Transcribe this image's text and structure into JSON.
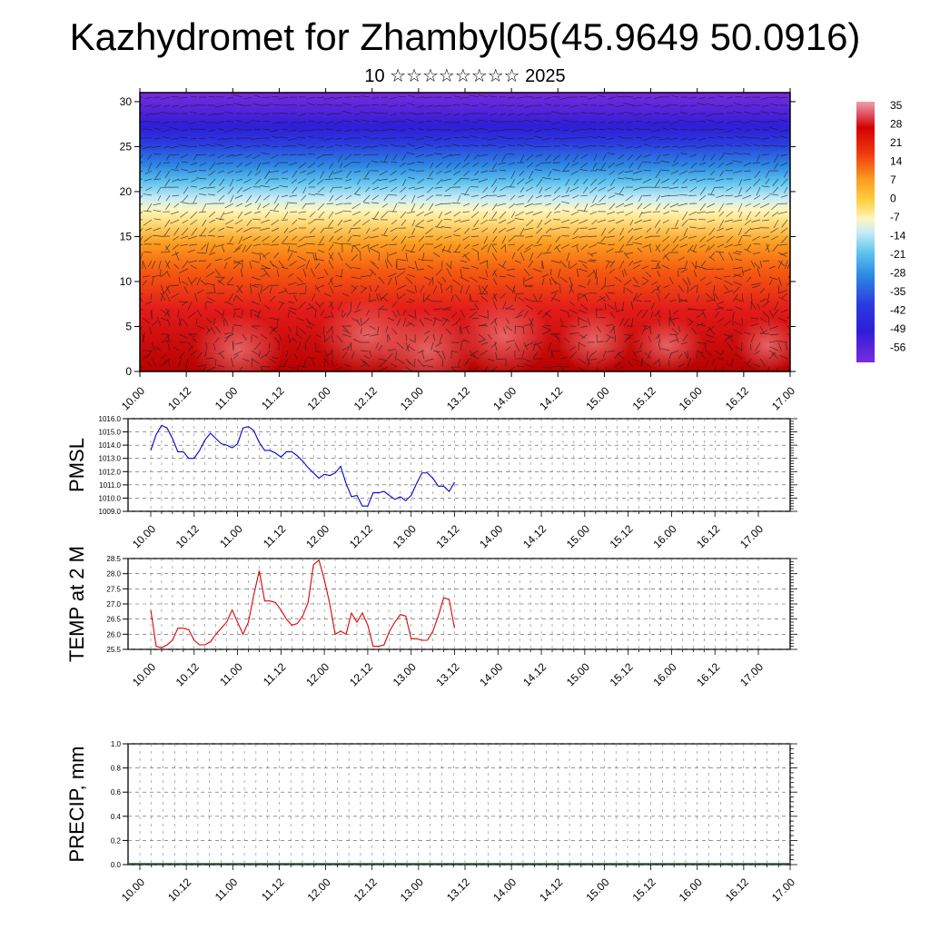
{
  "header": {
    "title": "Kazhydromet for Zhambyl05(45.9649 50.0916)",
    "subtitle": "10 ☆☆☆☆☆☆☆☆ 2025"
  },
  "colors": {
    "pmsl_line": "#0000cc",
    "temp_line": "#e00000",
    "frame": "#000000"
  },
  "chart_data": [
    {
      "type": "heatmap",
      "title": "",
      "x_tick_labels": [
        "10.00",
        "10.12",
        "11.00",
        "11.12",
        "12.00",
        "12.12",
        "13.00",
        "13.12",
        "14.00",
        "14.12",
        "15.00",
        "15.12",
        "16.00",
        "16.12",
        "17.00"
      ],
      "y_tick_labels": [
        "0",
        "5",
        "10",
        "15",
        "20",
        "25",
        "30"
      ],
      "ylim": [
        0,
        31
      ],
      "colorbar": {
        "labels": [
          "35",
          "28",
          "21",
          "14",
          "7",
          "0",
          "-7",
          "-14",
          "-21",
          "-28",
          "-35",
          "-42",
          "-49",
          "-56"
        ],
        "range": [
          -60,
          38
        ]
      },
      "overlay": "wind vectors",
      "notes_grid": true
    },
    {
      "type": "line",
      "ylabel": "PMSL",
      "ylim": [
        1009.0,
        1016.0
      ],
      "y_tick_labels": [
        "1016.0",
        "1015.0",
        "1014.0",
        "1013.0",
        "1012.0",
        "1011.0",
        "1010.0",
        "1009.0"
      ],
      "x_tick_labels": [
        "10.00",
        "10.12",
        "11.00",
        "11.12",
        "12.00",
        "12.12",
        "13.00",
        "13.12",
        "14.00",
        "14.12",
        "15.00",
        "15.12",
        "16.00",
        "16.12",
        "17.00"
      ],
      "grid": true,
      "series": [
        {
          "values": [
            1013.6,
            1014.8,
            1015.5,
            1015.3,
            1014.5,
            1013.5,
            1013.5,
            1013.0,
            1013.0,
            1013.6,
            1014.4,
            1014.9,
            1014.5,
            1014.1,
            1014.0,
            1013.8,
            1014.1,
            1015.3,
            1015.4,
            1015.1,
            1014.2,
            1013.6,
            1013.6,
            1013.4,
            1013.1,
            1013.5,
            1013.5,
            1013.2,
            1012.8,
            1012.3,
            1011.9,
            1011.5,
            1011.8,
            1011.7,
            1011.9,
            1012.4,
            1011.1,
            1010.1,
            1010.2,
            1009.4,
            1009.4,
            1010.4,
            1010.4,
            1010.5,
            1010.2,
            1009.9,
            1010.1,
            1009.8,
            1010.2,
            1011.1,
            1011.9,
            1011.9,
            1011.5,
            1010.9,
            1010.9,
            1010.5,
            1011.2
          ]
        }
      ]
    },
    {
      "type": "line",
      "ylabel": "TEMP at 2 M",
      "ylim": [
        25.5,
        28.5
      ],
      "y_tick_labels": [
        "28.5",
        "28.0",
        "27.5",
        "27.0",
        "26.5",
        "26.0",
        "25.5"
      ],
      "x_tick_labels": [
        "10.00",
        "10.12",
        "11.00",
        "11.12",
        "12.00",
        "12.12",
        "13.00",
        "13.12",
        "14.00",
        "14.12",
        "15.00",
        "15.12",
        "16.00",
        "16.12",
        "17.00"
      ],
      "grid": true,
      "series": [
        {
          "values": [
            26.8,
            25.6,
            25.55,
            25.65,
            25.8,
            26.2,
            26.2,
            26.15,
            25.8,
            25.65,
            25.65,
            25.75,
            26.0,
            26.2,
            26.4,
            26.8,
            26.4,
            26.0,
            26.4,
            27.3,
            28.1,
            27.1,
            27.1,
            27.05,
            26.8,
            26.5,
            26.3,
            26.35,
            26.6,
            27.05,
            28.3,
            28.45,
            27.8,
            27.0,
            26.0,
            26.1,
            26.0,
            26.7,
            26.4,
            26.7,
            26.3,
            25.6,
            25.6,
            25.65,
            26.1,
            26.4,
            26.65,
            26.6,
            25.85,
            25.85,
            25.8,
            25.8,
            26.1,
            26.6,
            27.2,
            27.15,
            26.2
          ]
        }
      ]
    },
    {
      "type": "line",
      "ylabel": "PRECIP, mm",
      "ylim": [
        0.0,
        1.0
      ],
      "y_tick_labels": [
        "1.0",
        "0.8",
        "0.6",
        "0.4",
        "0.2",
        "0.0"
      ],
      "x_tick_labels": [
        "10.00",
        "10.12",
        "11.00",
        "11.12",
        "12.00",
        "12.12",
        "13.00",
        "13.12",
        "14.00",
        "14.12",
        "15.00",
        "15.12",
        "16.00",
        "16.12",
        "17.00"
      ],
      "grid": true,
      "series": [
        {
          "values": []
        }
      ]
    }
  ]
}
